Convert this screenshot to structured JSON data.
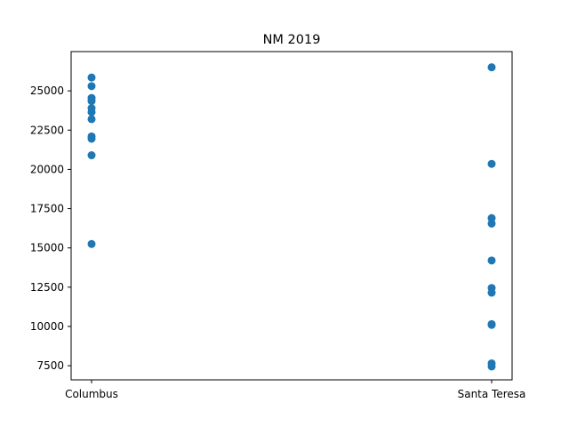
{
  "chart_data": {
    "type": "scatter",
    "title": "NM 2019",
    "xlabel": "",
    "ylabel": "",
    "categories": [
      "Columbus",
      "Santa Teresa"
    ],
    "ylim": [
      6600,
      27500
    ],
    "yticks": [
      "7500",
      "10000",
      "12500",
      "15000",
      "17500",
      "20000",
      "22500",
      "25000"
    ],
    "grid": false,
    "marker_color": "#1f77b4",
    "series": [
      {
        "points": [
          {
            "x": "Columbus",
            "y": 25850
          },
          {
            "x": "Columbus",
            "y": 25300
          },
          {
            "x": "Columbus",
            "y": 24550
          },
          {
            "x": "Columbus",
            "y": 24350
          },
          {
            "x": "Columbus",
            "y": 23900
          },
          {
            "x": "Columbus",
            "y": 23650
          },
          {
            "x": "Columbus",
            "y": 23200
          },
          {
            "x": "Columbus",
            "y": 22100
          },
          {
            "x": "Columbus",
            "y": 21950
          },
          {
            "x": "Columbus",
            "y": 20900
          },
          {
            "x": "Columbus",
            "y": 15250
          },
          {
            "x": "Santa Teresa",
            "y": 26500
          },
          {
            "x": "Santa Teresa",
            "y": 20350
          },
          {
            "x": "Santa Teresa",
            "y": 16900
          },
          {
            "x": "Santa Teresa",
            "y": 16550
          },
          {
            "x": "Santa Teresa",
            "y": 14200
          },
          {
            "x": "Santa Teresa",
            "y": 12450
          },
          {
            "x": "Santa Teresa",
            "y": 12150
          },
          {
            "x": "Santa Teresa",
            "y": 10150
          },
          {
            "x": "Santa Teresa",
            "y": 10100
          },
          {
            "x": "Santa Teresa",
            "y": 7650
          },
          {
            "x": "Santa Teresa",
            "y": 7450
          }
        ]
      }
    ]
  }
}
